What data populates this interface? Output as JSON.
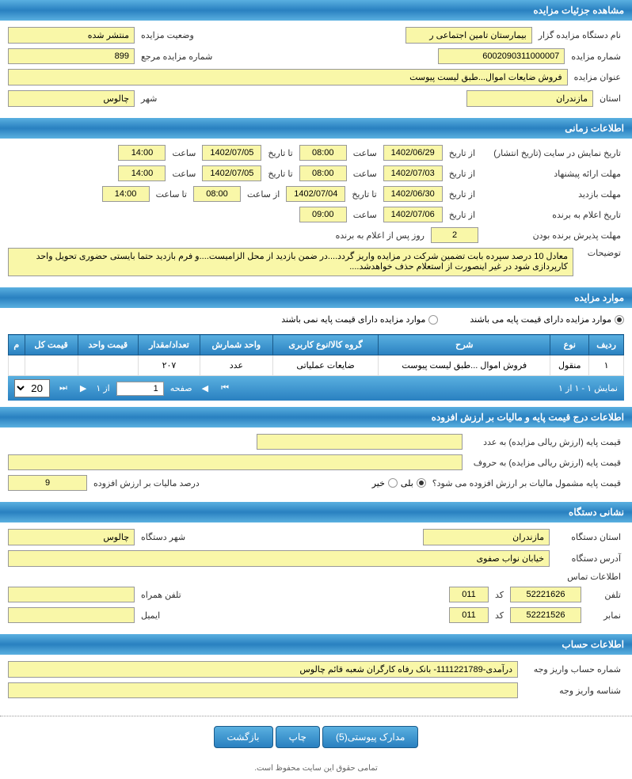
{
  "colors": {
    "header_gradient_top": "#5ab0e0",
    "header_gradient_bottom": "#2980c0",
    "field_bg": "#f9f7a8",
    "field_border": "#999999"
  },
  "sections": {
    "auction_details": {
      "title": "مشاهده جزئیات مزایده",
      "organizer_label": "نام دستگاه مزایده گزار",
      "organizer_value": "بیمارستان تامین اجتماعی ر",
      "status_label": "وضعیت مزایده",
      "status_value": "منتشر شده",
      "auction_no_label": "شماره مزایده",
      "auction_no_value": "6002090311000007",
      "ref_no_label": "شماره مزایده مرجع",
      "ref_no_value": "899",
      "title_label": "عنوان مزایده",
      "title_value": "فروش ضایعات اموال...طبق لیست پیوست",
      "province_label": "استان",
      "province_value": "مازندران",
      "city_label": "شهر",
      "city_value": "چالوس"
    },
    "time_info": {
      "title": "اطلاعات زمانی",
      "publish_date_label": "تاریخ نمایش در سایت (تاریخ انتشار)",
      "from_label": "از تاریخ",
      "to_label": "تا تاریخ",
      "time_label": "ساعت",
      "to_time_label": "تا ساعت",
      "from_time_label": "از ساعت",
      "publish_from_date": "1402/06/29",
      "publish_from_time": "08:00",
      "publish_to_date": "1402/07/05",
      "publish_to_time": "14:00",
      "proposal_label": "مهلت ارائه پیشنهاد",
      "proposal_from_date": "1402/07/03",
      "proposal_from_time": "08:00",
      "proposal_to_date": "1402/07/05",
      "proposal_to_time": "14:00",
      "visit_label": "مهلت بازدید",
      "visit_from_date": "1402/06/30",
      "visit_to_date": "1402/07/04",
      "visit_from_time": "08:00",
      "visit_to_time": "14:00",
      "announce_label": "تاریخ اعلام به برنده",
      "announce_date": "1402/07/06",
      "announce_time": "09:00",
      "winner_deadline_label": "مهلت پذیرش برنده بودن",
      "winner_days": "2",
      "winner_days_after": "روز پس از اعلام به برنده",
      "notes_label": "توضیحات",
      "notes_value": "معادل 10 درصد سپرده بابت تضمین شرکت در مزایده واریز گردد....در ضمن بازدید از محل الزامیست....و فرم بازدید حتما بایستی حضوری تحویل واحد کارپردازی شود در غیر اینصورت از استعلام حذف خواهدشد...."
    },
    "auction_items": {
      "title": "موارد مزایده",
      "radio_has_base": "موارد مزایده دارای قیمت پایه می باشند",
      "radio_no_base": "موارد مزایده دارای قیمت پایه نمی باشند",
      "columns": [
        "ردیف",
        "نوع",
        "شرح",
        "گروه کالا/نوع کاربری",
        "واحد شمارش",
        "تعداد/مقدار",
        "قیمت واحد",
        "قیمت کل",
        "م"
      ],
      "rows": [
        [
          "۱",
          "منقول",
          "فروش اموال ...طبق لیست پیوست",
          "ضایعات عملیاتی",
          "عدد",
          "۲۰۷",
          "",
          "",
          ""
        ]
      ],
      "pager_display": "نمایش ۱ - ۱ از ۱",
      "pager_page_label": "صفحه",
      "pager_page_value": "1",
      "pager_of": "از ۱",
      "pager_size": "20"
    },
    "price_vat": {
      "title": "اطلاعات درج قیمت پایه و مالیات بر ارزش افزوده",
      "base_price_num_label": "قیمت پایه (ارزش ریالی مزایده) به عدد",
      "base_price_num_value": "",
      "base_price_word_label": "قیمت پایه (ارزش ریالی مزایده) به حروف",
      "base_price_word_value": "",
      "vat_question": "قیمت پایه مشمول مالیات بر ارزش افزوده می شود؟",
      "yes": "بلی",
      "no": "خیر",
      "vat_percent_label": "درصد مالیات بر ارزش افزوده",
      "vat_percent_value": "9"
    },
    "org_address": {
      "title": "نشانی دستگاه",
      "province_label": "استان دستگاه",
      "province_value": "مازندران",
      "city_label": "شهر دستگاه",
      "city_value": "چالوس",
      "address_label": "آدرس دستگاه",
      "address_value": "خیابان نواب صفوی",
      "contact_label": "اطلاعات تماس",
      "phone_label": "تلفن",
      "phone_value": "52221626",
      "code_label": "کد",
      "phone_code": "011",
      "mobile_label": "تلفن همراه",
      "mobile_value": "",
      "fax_label": "نمابر",
      "fax_value": "52221526",
      "fax_code": "011",
      "email_label": "ایمیل",
      "email_value": ""
    },
    "account": {
      "title": "اطلاعات حساب",
      "account_no_label": "شماره حساب واریز وجه",
      "account_no_value": "درآمدی-1111221789- بانک رفاه کارگران شعبه قائم چالوس",
      "deposit_id_label": "شناسه واریز وجه",
      "deposit_id_value": ""
    }
  },
  "actions": {
    "attachments": "مدارک پیوستی(5)",
    "print": "چاپ",
    "back": "بازگشت"
  },
  "footer": "تمامی حقوق این سایت محفوظ است."
}
